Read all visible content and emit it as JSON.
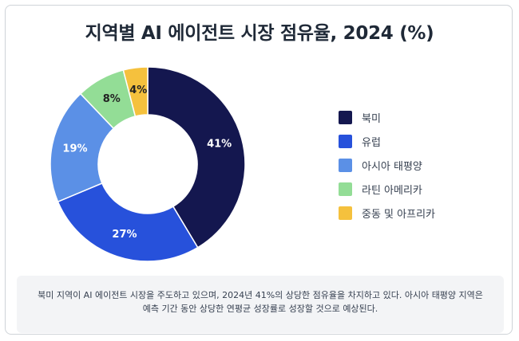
{
  "chart_data": {
    "type": "pie",
    "title": "지역별 AI 에이전트 시장 점유율, 2024 (%)",
    "legend_position": "right",
    "categories": [
      "북미",
      "유럽",
      "아시아 태평양",
      "라틴 아메리카",
      "중동 및 아프리카"
    ],
    "values": [
      41,
      27,
      19,
      8,
      4
    ],
    "data_labels": [
      "41%",
      "27%",
      "19%",
      "8%",
      "4%"
    ],
    "colors": [
      "#14174f",
      "#2751db",
      "#5b90e6",
      "#93dd96",
      "#f5c13d"
    ],
    "label_colors": [
      "#ffffff",
      "#ffffff",
      "#ffffff",
      "#222222",
      "#222222"
    ]
  },
  "note": {
    "text": "북미 지역이 AI 에이전트 시장을 주도하고 있으며, 2024년 41%의 상당한 점유율을 차지하고 있다. 아시아 태평양 지역은 예측 기간 동안 상당한 연평균 성장률로 성장할 것으로 예상된다."
  }
}
